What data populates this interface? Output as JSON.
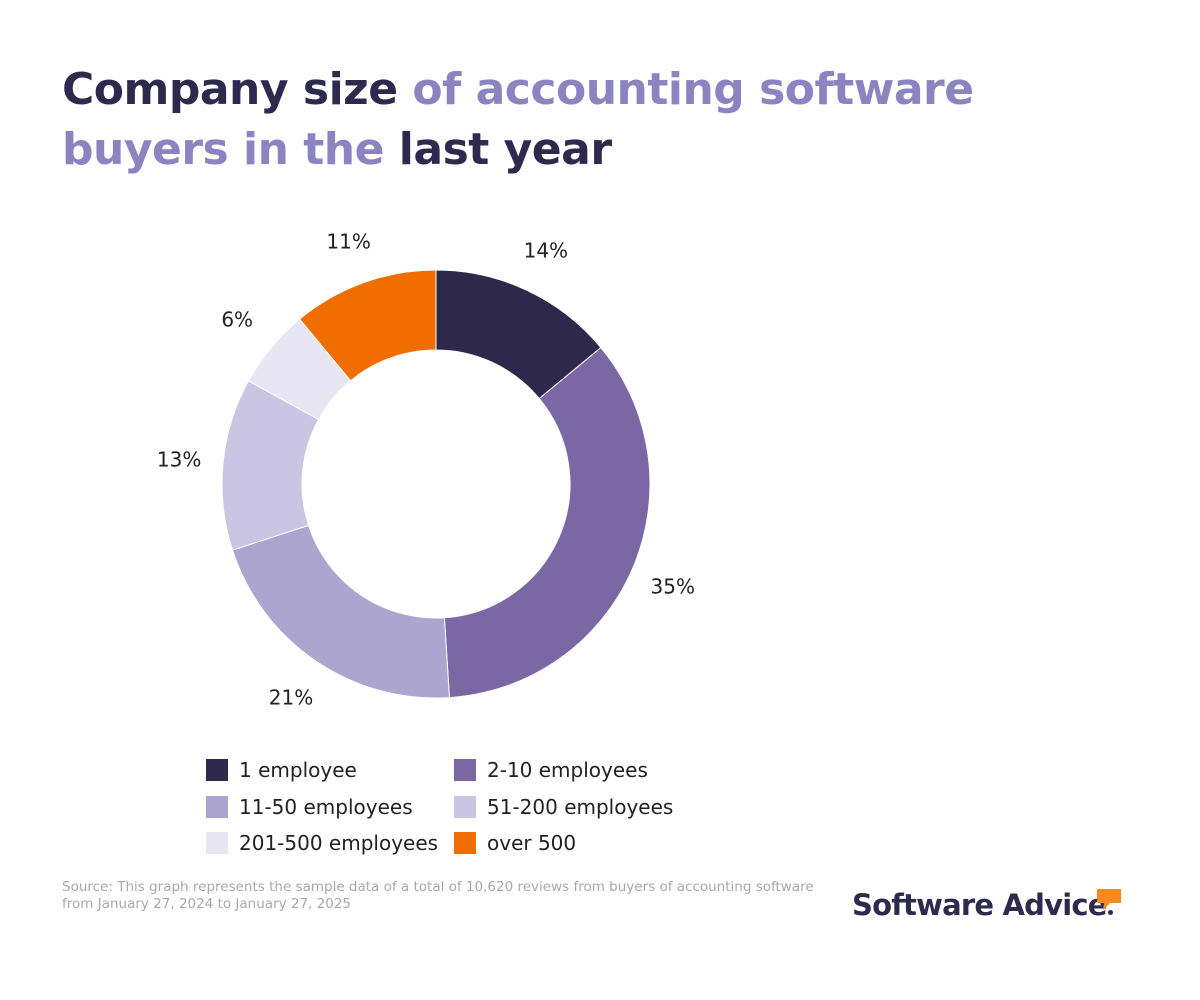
{
  "title": {
    "part1": "Company size ",
    "part2": "of accounting software buyers in the",
    "part3": " last year"
  },
  "chart_data": {
    "type": "pie",
    "style": "donut",
    "slices": [
      {
        "label": "1 employee",
        "value": 14,
        "display": "14%",
        "color": "#2e284d"
      },
      {
        "label": "2-10 employees",
        "value": 35,
        "display": "35%",
        "color": "#7b67a3"
      },
      {
        "label": "11-50 employees",
        "value": 21,
        "display": "21%",
        "color": "#aca5cf"
      },
      {
        "label": "51-200 employees",
        "value": 13,
        "display": "13%",
        "color": "#c9c5e3"
      },
      {
        "label": "201-500 employees",
        "value": 6,
        "display": "6%",
        "color": "#e8e6f3"
      },
      {
        "label": "over 500",
        "value": 11,
        "display": "11%",
        "color": "#f06d00"
      }
    ],
    "legend_position": "bottom"
  },
  "source": "Source: This graph represents the sample data of a total of 10,620 reviews from buyers of accounting software from January 27, 2024 to January 27, 2025",
  "brand": {
    "name": "Software Advice",
    "accent_color": "#f68a1e"
  }
}
